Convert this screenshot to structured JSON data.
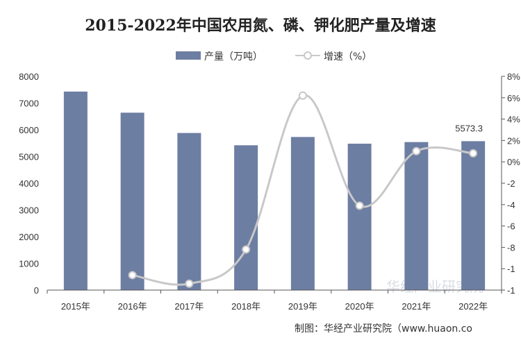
{
  "chart_data": {
    "type": "bar",
    "title": "2015-2022年中国农用氮、磷、钾化肥产量及增速",
    "categories": [
      "2015年",
      "2016年",
      "2017年",
      "2018年",
      "2019年",
      "2020年",
      "2021年",
      "2022年"
    ],
    "series": [
      {
        "name": "产量（万吨）",
        "type": "bar",
        "axis": "left",
        "values": [
          7430,
          6640,
          5880,
          5420,
          5730,
          5480,
          5540,
          5573.3
        ]
      },
      {
        "name": "增速（%）",
        "type": "line",
        "axis": "right",
        "values": [
          null,
          -10.6,
          -11.4,
          -8.2,
          6.2,
          -4.1,
          1.0,
          0.8
        ]
      }
    ],
    "y_left": {
      "min": 0,
      "max": 8000,
      "ticks": [
        "0",
        "1000",
        "2000",
        "3000",
        "4000",
        "5000",
        "6000",
        "7000",
        "8000"
      ]
    },
    "y_right": {
      "min": -12,
      "max": 8,
      "ticks": [
        "-1",
        "-1",
        "-8",
        "-6",
        "-4",
        "-2",
        "0%",
        "2%",
        "4%",
        "6%",
        "8%"
      ]
    },
    "data_labels": [
      {
        "category_index": 7,
        "text": "5573.3"
      }
    ],
    "legend": {
      "position": "top-center"
    },
    "grid": false
  },
  "colors": {
    "bar": "#6d7ea3",
    "line": "#c8c8c8",
    "marker_fill": "#ffffff",
    "axis": "#555555"
  },
  "watermark": "华经产业研究院",
  "source": "制图：华经产业研究院（www.huaon.co"
}
